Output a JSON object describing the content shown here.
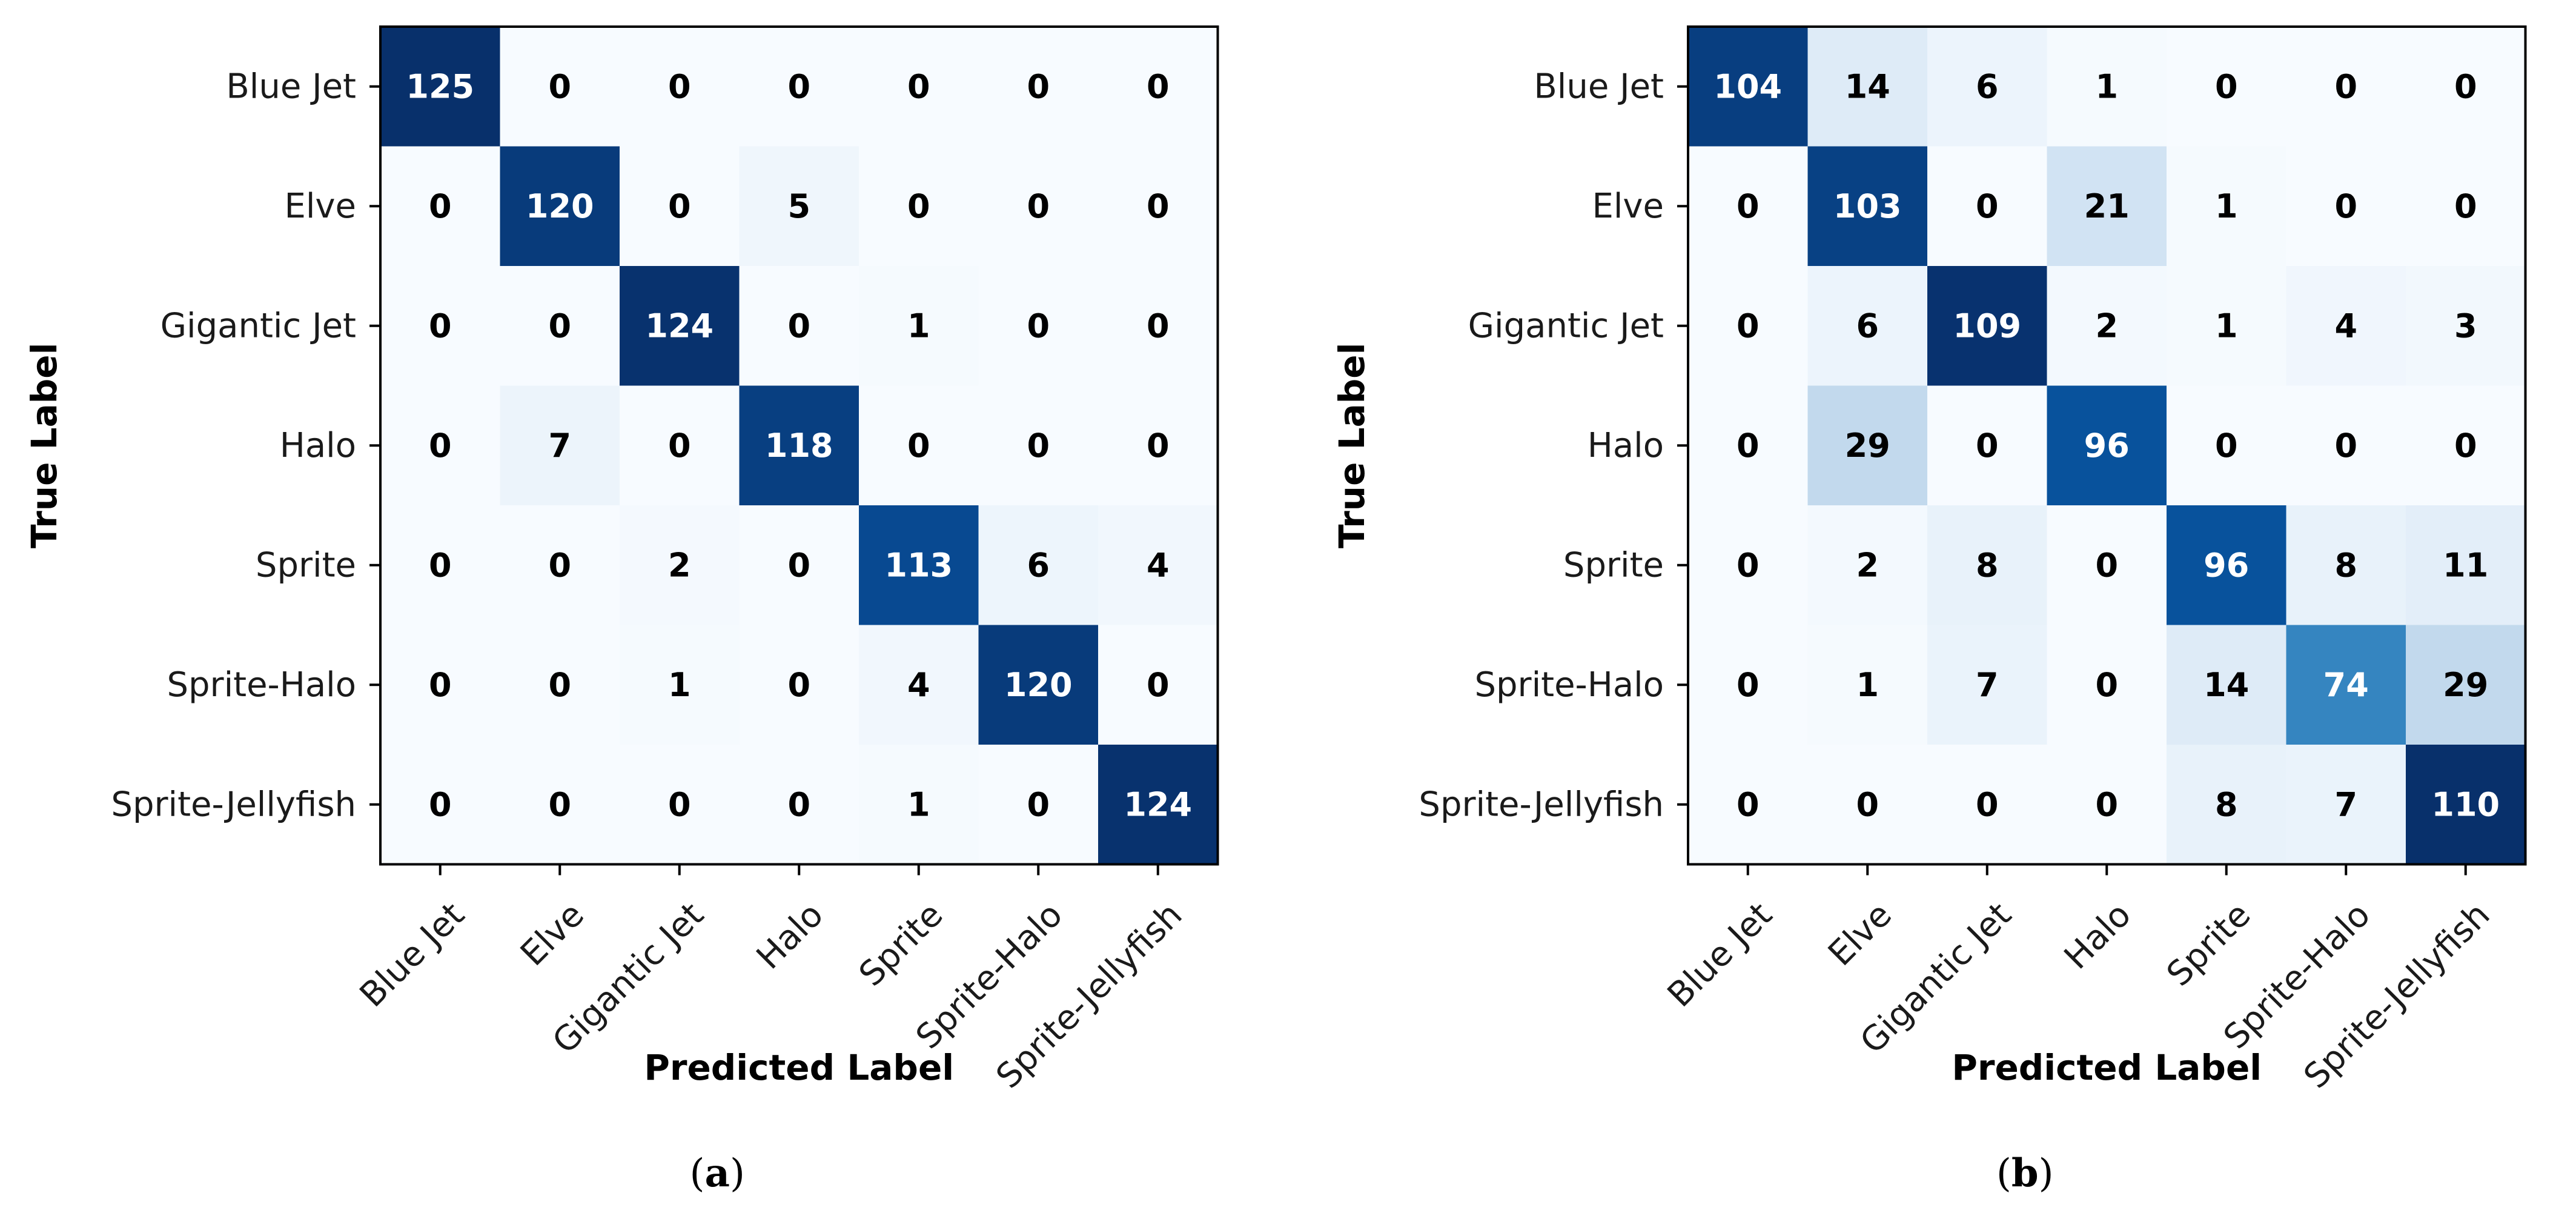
{
  "chart_data": [
    {
      "type": "heatmap",
      "id": "a",
      "caption_letter": "a",
      "xlabel": "Predicted Label",
      "ylabel": "True Label",
      "x_categories": [
        "Blue Jet",
        "Elve",
        "Gigantic Jet",
        "Halo",
        "Sprite",
        "Sprite-Halo",
        "Sprite-Jellyfish"
      ],
      "y_categories": [
        "Blue Jet",
        "Elve",
        "Gigantic Jet",
        "Halo",
        "Sprite",
        "Sprite-Halo",
        "Sprite-Jellyfish"
      ],
      "colormap": "Blues",
      "value_range": [
        0,
        125
      ],
      "matrix": [
        [
          125,
          0,
          0,
          0,
          0,
          0,
          0
        ],
        [
          0,
          120,
          0,
          5,
          0,
          0,
          0
        ],
        [
          0,
          0,
          124,
          0,
          1,
          0,
          0
        ],
        [
          0,
          7,
          0,
          118,
          0,
          0,
          0
        ],
        [
          0,
          0,
          2,
          0,
          113,
          6,
          4
        ],
        [
          0,
          0,
          1,
          0,
          4,
          120,
          0
        ],
        [
          0,
          0,
          0,
          0,
          1,
          0,
          124
        ]
      ]
    },
    {
      "type": "heatmap",
      "id": "b",
      "caption_letter": "b",
      "xlabel": "Predicted Label",
      "ylabel": "True Label",
      "x_categories": [
        "Blue Jet",
        "Elve",
        "Gigantic Jet",
        "Halo",
        "Sprite",
        "Sprite-Halo",
        "Sprite-Jellyfish"
      ],
      "y_categories": [
        "Blue Jet",
        "Elve",
        "Gigantic Jet",
        "Halo",
        "Sprite",
        "Sprite-Halo",
        "Sprite-Jellyfish"
      ],
      "colormap": "Blues",
      "value_range": [
        0,
        110
      ],
      "matrix": [
        [
          104,
          14,
          6,
          1,
          0,
          0,
          0
        ],
        [
          0,
          103,
          0,
          21,
          1,
          0,
          0
        ],
        [
          0,
          6,
          109,
          2,
          1,
          4,
          3
        ],
        [
          0,
          29,
          0,
          96,
          0,
          0,
          0
        ],
        [
          0,
          2,
          8,
          0,
          96,
          8,
          11
        ],
        [
          0,
          1,
          7,
          0,
          14,
          74,
          29
        ],
        [
          0,
          0,
          0,
          0,
          8,
          7,
          110
        ]
      ]
    }
  ]
}
